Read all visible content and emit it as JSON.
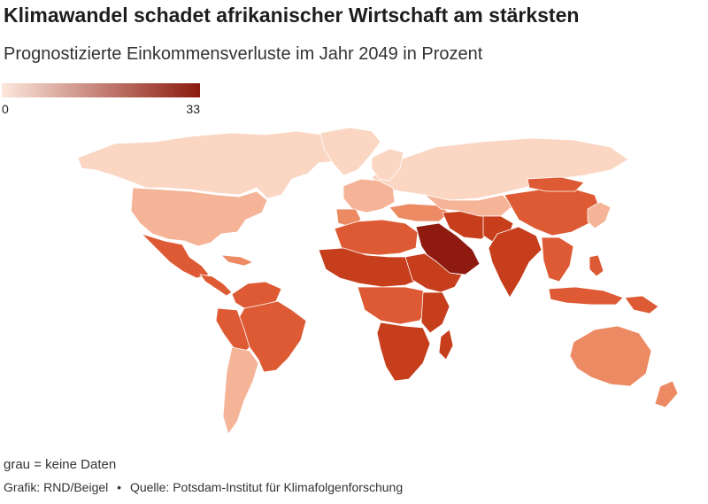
{
  "title": "Klimawandel schadet afrikanischer Wirtschaft am stärksten",
  "subtitle": "Prognostizierte Einkommensverluste im Jahr 2049 in Prozent",
  "legend": {
    "min_label": "0",
    "max_label": "33",
    "color_low": "#fde7dc",
    "color_high": "#8b1a0f"
  },
  "colors": {
    "land_lightest": "#fbd6c3",
    "land_light": "#f5b497",
    "land_medium": "#ec8a63",
    "land_strong": "#dd5a34",
    "land_darker": "#c73e1d",
    "land_darkest": "#8e1a10",
    "border": "#ffffff"
  },
  "notes": {
    "no_data": "grau = keine Daten"
  },
  "credits": {
    "graphic": "Grafik: RND/Beigel",
    "separator": "•",
    "source": "Quelle: Potsdam-Institut für Klimafolgenforschung"
  }
}
